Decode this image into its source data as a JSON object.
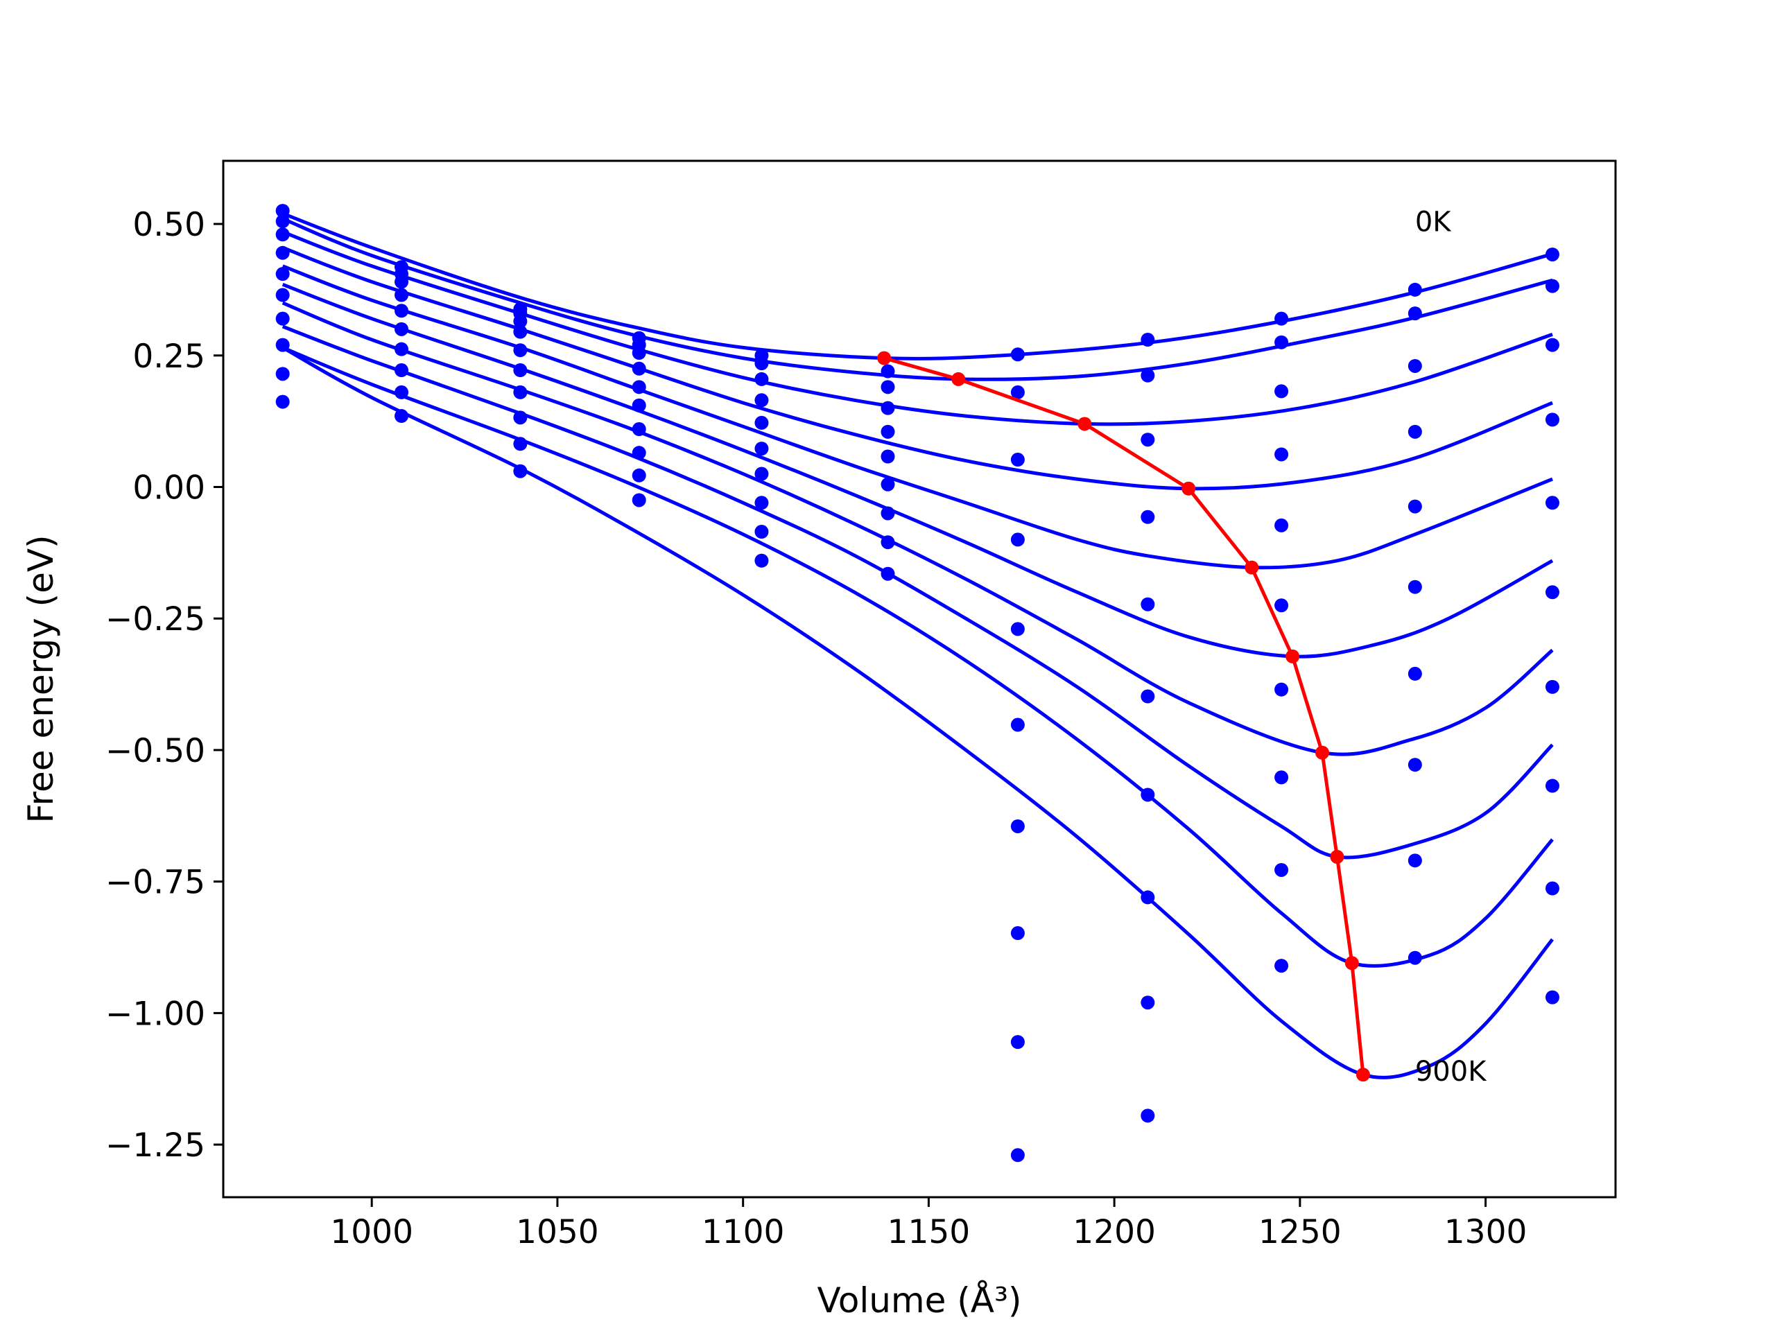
{
  "chart_data": {
    "type": "line",
    "xlabel": "Volume (Å³)",
    "ylabel": "Free energy (eV)",
    "xlim": [
      960,
      1335
    ],
    "ylim": [
      -1.35,
      0.62
    ],
    "xticks": [
      1000,
      1050,
      1100,
      1150,
      1200,
      1250,
      1300
    ],
    "xtick_labels": [
      "1000",
      "1050",
      "1100",
      "1150",
      "1200",
      "1250",
      "1300"
    ],
    "yticks": [
      0.5,
      0.25,
      0.0,
      -0.25,
      -0.5,
      -0.75,
      -1.0,
      -1.25
    ],
    "ytick_labels": [
      "0.50",
      "0.25",
      "0.00",
      "−0.25",
      "−0.50",
      "−0.75",
      "−1.00",
      "−1.25"
    ],
    "grid": false,
    "annotations": [
      {
        "text": "0K",
        "x": 1281,
        "y": 0.505
      },
      {
        "text": "900K",
        "x": 1281,
        "y": -1.11
      }
    ],
    "colors": {
      "curves": "#0000ff",
      "points": "#0000ff",
      "minimum_path": "#ff0000"
    },
    "volumes": [
      976,
      1008,
      1040,
      1072,
      1105,
      1139,
      1174,
      1209,
      1245,
      1281,
      1318
    ],
    "series": [
      {
        "fit_min_volume": 1138,
        "fit_min_energy": 0.245,
        "points": [
          0.525,
          0.418,
          0.338,
          0.283,
          0.25,
          0.22,
          0.252,
          0.28,
          0.32,
          0.375,
          0.442
        ]
      },
      {
        "fit_min_volume": 1158,
        "fit_min_energy": 0.205,
        "points": [
          0.505,
          0.405,
          0.33,
          0.27,
          0.235,
          0.19,
          0.18,
          0.212,
          0.275,
          0.33,
          0.382
        ]
      },
      {
        "fit_min_volume": 1192,
        "fit_min_energy": 0.12,
        "points": [
          0.48,
          0.39,
          0.315,
          0.255,
          0.205,
          0.15,
          0.052,
          0.09,
          0.182,
          0.23,
          0.27
        ]
      },
      {
        "fit_min_volume": 1220,
        "fit_min_energy": -0.003,
        "points": [
          0.445,
          0.365,
          0.295,
          0.225,
          0.165,
          0.105,
          -0.1,
          -0.057,
          0.062,
          0.105,
          0.128
        ]
      },
      {
        "fit_min_volume": 1237,
        "fit_min_energy": -0.153,
        "points": [
          0.405,
          0.335,
          0.26,
          0.19,
          0.122,
          0.058,
          -0.27,
          -0.223,
          -0.073,
          -0.037,
          -0.03
        ]
      },
      {
        "fit_min_volume": 1248,
        "fit_min_energy": -0.322,
        "points": [
          0.365,
          0.3,
          0.222,
          0.155,
          0.073,
          0.005,
          -0.452,
          -0.398,
          -0.225,
          -0.19,
          -0.2
        ]
      },
      {
        "fit_min_volume": 1256,
        "fit_min_energy": -0.505,
        "points": [
          0.32,
          0.262,
          0.18,
          0.11,
          0.025,
          -0.05,
          -0.645,
          -0.585,
          -0.385,
          -0.355,
          -0.38
        ]
      },
      {
        "fit_min_volume": 1260,
        "fit_min_energy": -0.703,
        "points": [
          0.27,
          0.222,
          0.132,
          0.065,
          -0.03,
          -0.105,
          -0.848,
          -0.78,
          -0.552,
          -0.528,
          -0.568
        ]
      },
      {
        "fit_min_volume": 1264,
        "fit_min_energy": -0.905,
        "points": [
          0.215,
          0.18,
          0.082,
          0.022,
          -0.085,
          -0.165,
          -1.055,
          -0.98,
          -0.728,
          -0.71,
          -0.763
        ]
      },
      {
        "fit_min_volume": 1267,
        "fit_min_energy": -1.117,
        "points": [
          0.162,
          0.135,
          0.03,
          -0.025,
          -0.14,
          null,
          -1.27,
          -1.195,
          -0.91,
          -0.895,
          -0.97
        ]
      }
    ],
    "curves": [
      {
        "x": [
          976,
          1000,
          1040,
          1070,
          1100,
          1138,
          1170,
          1210,
          1245,
          1281,
          1318
        ],
        "y": [
          0.52,
          0.455,
          0.36,
          0.305,
          0.265,
          0.245,
          0.25,
          0.275,
          0.315,
          0.37,
          0.443
        ]
      },
      {
        "x": [
          976,
          1000,
          1040,
          1070,
          1100,
          1130,
          1158,
          1190,
          1220,
          1250,
          1281,
          1318
        ],
        "y": [
          0.51,
          0.44,
          0.35,
          0.29,
          0.245,
          0.218,
          0.205,
          0.21,
          0.235,
          0.275,
          0.322,
          0.393
        ]
      },
      {
        "x": [
          976,
          1000,
          1040,
          1070,
          1100,
          1130,
          1160,
          1192,
          1220,
          1250,
          1281,
          1318
        ],
        "y": [
          0.485,
          0.42,
          0.33,
          0.265,
          0.208,
          0.165,
          0.135,
          0.12,
          0.125,
          0.15,
          0.2,
          0.29
        ]
      },
      {
        "x": [
          976,
          1000,
          1040,
          1070,
          1100,
          1130,
          1160,
          1190,
          1220,
          1250,
          1281,
          1318
        ],
        "y": [
          0.455,
          0.39,
          0.3,
          0.23,
          0.16,
          0.1,
          0.05,
          0.015,
          -0.003,
          0.01,
          0.055,
          0.16
        ]
      },
      {
        "x": [
          976,
          1000,
          1040,
          1070,
          1100,
          1130,
          1160,
          1190,
          1210,
          1237,
          1260,
          1281,
          1318
        ],
        "y": [
          0.42,
          0.355,
          0.265,
          0.19,
          0.115,
          0.04,
          -0.03,
          -0.1,
          -0.132,
          -0.153,
          -0.14,
          -0.09,
          0.015
        ]
      },
      {
        "x": [
          976,
          1000,
          1040,
          1070,
          1100,
          1130,
          1160,
          1190,
          1220,
          1248,
          1270,
          1290,
          1318
        ],
        "y": [
          0.385,
          0.32,
          0.225,
          0.15,
          0.07,
          -0.015,
          -0.105,
          -0.2,
          -0.285,
          -0.322,
          -0.3,
          -0.25,
          -0.14
        ]
      },
      {
        "x": [
          976,
          1000,
          1040,
          1070,
          1100,
          1130,
          1160,
          1190,
          1220,
          1256,
          1280,
          1300,
          1318
        ],
        "y": [
          0.35,
          0.28,
          0.185,
          0.11,
          0.025,
          -0.07,
          -0.175,
          -0.29,
          -0.41,
          -0.505,
          -0.48,
          -0.42,
          -0.31
        ]
      },
      {
        "x": [
          976,
          1000,
          1040,
          1070,
          1100,
          1130,
          1160,
          1190,
          1220,
          1245,
          1260,
          1280,
          1300,
          1318
        ],
        "y": [
          0.305,
          0.24,
          0.14,
          0.06,
          -0.03,
          -0.13,
          -0.25,
          -0.38,
          -0.53,
          -0.645,
          -0.703,
          -0.68,
          -0.62,
          -0.49
        ]
      },
      {
        "x": [
          976,
          1000,
          1040,
          1070,
          1100,
          1130,
          1160,
          1190,
          1220,
          1245,
          1264,
          1285,
          1300,
          1318
        ],
        "y": [
          0.265,
          0.195,
          0.09,
          0.005,
          -0.09,
          -0.2,
          -0.33,
          -0.48,
          -0.65,
          -0.81,
          -0.905,
          -0.89,
          -0.82,
          -0.67
        ]
      },
      {
        "x": [
          976,
          1000,
          1040,
          1070,
          1100,
          1130,
          1160,
          1190,
          1220,
          1245,
          1267,
          1285,
          1300,
          1318
        ],
        "y": [
          0.265,
          0.17,
          0.035,
          -0.08,
          -0.205,
          -0.345,
          -0.5,
          -0.665,
          -0.85,
          -1.015,
          -1.117,
          -1.1,
          -1.02,
          -0.86
        ]
      }
    ],
    "minimum_path": {
      "x": [
        1138,
        1158,
        1192,
        1220,
        1237,
        1248,
        1256,
        1260,
        1264,
        1267
      ],
      "y": [
        0.245,
        0.205,
        0.12,
        -0.003,
        -0.153,
        -0.322,
        -0.505,
        -0.703,
        -0.905,
        -1.117
      ]
    }
  }
}
